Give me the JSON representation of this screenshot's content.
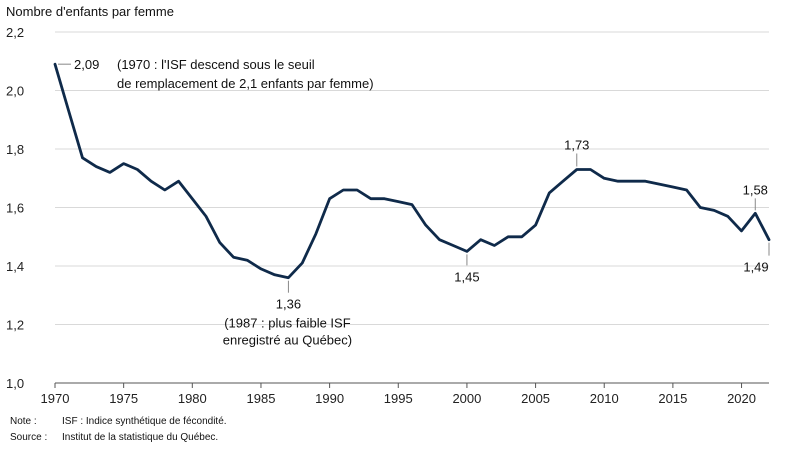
{
  "chart_data": {
    "type": "line",
    "ylabel": "Nombre d'enfants par femme",
    "ylim": [
      1.0,
      2.2
    ],
    "yticks": [
      "1,0",
      "1,2",
      "1,4",
      "1,6",
      "1,8",
      "2,0",
      "2,2"
    ],
    "ytick_values": [
      1.0,
      1.2,
      1.4,
      1.6,
      1.8,
      2.0,
      2.2
    ],
    "xlim": [
      1970,
      2022
    ],
    "xticks": [
      "1970",
      "1975",
      "1980",
      "1985",
      "1990",
      "1995",
      "2000",
      "2005",
      "2010",
      "2015",
      "2020"
    ],
    "xtick_values": [
      1970,
      1975,
      1980,
      1985,
      1990,
      1995,
      2000,
      2005,
      2010,
      2015,
      2020
    ],
    "grid": true,
    "color": "#0f2a4a",
    "series": [
      {
        "name": "ISF",
        "x": [
          1970,
          1971,
          1972,
          1973,
          1974,
          1975,
          1976,
          1977,
          1978,
          1979,
          1980,
          1981,
          1982,
          1983,
          1984,
          1985,
          1986,
          1987,
          1988,
          1989,
          1990,
          1991,
          1992,
          1993,
          1994,
          1995,
          1996,
          1997,
          1998,
          1999,
          2000,
          2001,
          2002,
          2003,
          2004,
          2005,
          2006,
          2007,
          2008,
          2009,
          2010,
          2011,
          2012,
          2013,
          2014,
          2015,
          2016,
          2017,
          2018,
          2019,
          2020,
          2021,
          2022
        ],
        "values": [
          2.09,
          1.93,
          1.77,
          1.74,
          1.72,
          1.75,
          1.73,
          1.69,
          1.66,
          1.69,
          1.63,
          1.57,
          1.48,
          1.43,
          1.42,
          1.39,
          1.37,
          1.36,
          1.41,
          1.51,
          1.63,
          1.66,
          1.66,
          1.63,
          1.63,
          1.62,
          1.61,
          1.54,
          1.49,
          1.47,
          1.45,
          1.49,
          1.47,
          1.5,
          1.5,
          1.54,
          1.65,
          1.69,
          1.73,
          1.73,
          1.7,
          1.69,
          1.69,
          1.69,
          1.68,
          1.67,
          1.66,
          1.6,
          1.59,
          1.57,
          1.52,
          1.58,
          1.49
        ]
      }
    ],
    "annotations": [
      {
        "x": 1970,
        "y": 2.09,
        "value": "2,09",
        "note": [
          "(1970 : l'ISF descend sous le seuil",
          "de remplacement de 2,1 enfants par femme)"
        ]
      },
      {
        "x": 1987,
        "y": 1.36,
        "value": "1,36",
        "note": [
          "(1987 : plus faible ISF",
          "enregistré au Québec)"
        ]
      },
      {
        "x": 2000,
        "y": 1.45,
        "value": "1,45",
        "note": []
      },
      {
        "x": 2008,
        "y": 1.73,
        "value": "1,73",
        "note": []
      },
      {
        "x": 2021,
        "y": 1.58,
        "value": "1,58",
        "note": []
      },
      {
        "x": 2022,
        "y": 1.49,
        "value": "1,49",
        "note": []
      }
    ]
  },
  "notes": {
    "note_key": "Note :",
    "note_text": "ISF : Indice synthétique de fécondité.",
    "source_key": "Source :",
    "source_text": "Institut de la statistique du Québec."
  }
}
